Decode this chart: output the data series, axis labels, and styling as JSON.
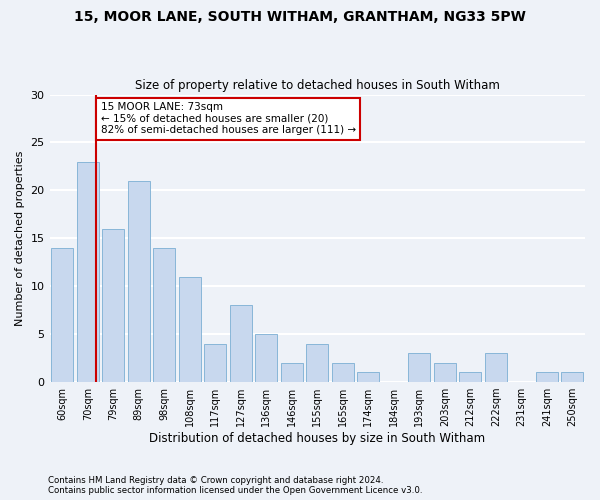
{
  "title1": "15, MOOR LANE, SOUTH WITHAM, GRANTHAM, NG33 5PW",
  "title2": "Size of property relative to detached houses in South Witham",
  "xlabel": "Distribution of detached houses by size in South Witham",
  "ylabel": "Number of detached properties",
  "categories": [
    "60sqm",
    "70sqm",
    "79sqm",
    "89sqm",
    "98sqm",
    "108sqm",
    "117sqm",
    "127sqm",
    "136sqm",
    "146sqm",
    "155sqm",
    "165sqm",
    "174sqm",
    "184sqm",
    "193sqm",
    "203sqm",
    "212sqm",
    "222sqm",
    "231sqm",
    "241sqm",
    "250sqm"
  ],
  "values": [
    14,
    23,
    16,
    21,
    14,
    11,
    4,
    8,
    5,
    2,
    4,
    2,
    1,
    0,
    3,
    2,
    1,
    3,
    0,
    1,
    1
  ],
  "bar_color": "#c8d8ee",
  "bar_edge_color": "#7bafd4",
  "vline_color": "#cc0000",
  "annotation_line1": "15 MOOR LANE: 73sqm",
  "annotation_line2": "← 15% of detached houses are smaller (20)",
  "annotation_line3": "82% of semi-detached houses are larger (111) →",
  "annotation_box_color": "#cc0000",
  "annotation_box_fill": "#ffffff",
  "ylim": [
    0,
    30
  ],
  "yticks": [
    0,
    5,
    10,
    15,
    20,
    25,
    30
  ],
  "footer1": "Contains HM Land Registry data © Crown copyright and database right 2024.",
  "footer2": "Contains public sector information licensed under the Open Government Licence v3.0.",
  "bg_color": "#eef2f8",
  "grid_color": "#ffffff"
}
